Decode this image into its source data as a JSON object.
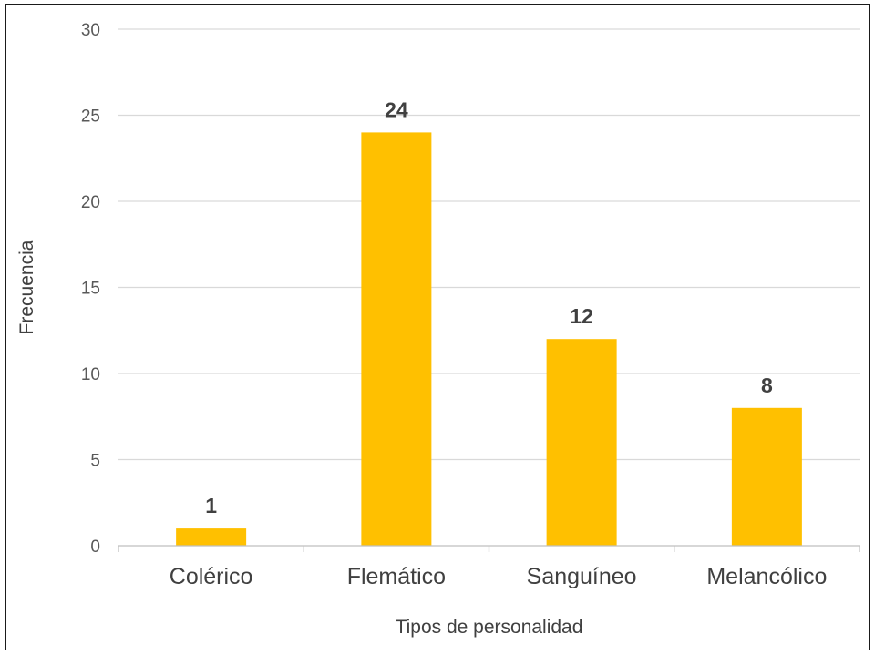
{
  "chart_data": {
    "type": "bar",
    "categories": [
      "Colérico",
      "Flemático",
      "Sanguíneo",
      "Melancólico"
    ],
    "values": [
      1,
      24,
      12,
      8
    ],
    "data_labels": [
      "1",
      "24",
      "12",
      "8"
    ],
    "title": "",
    "xlabel": "Tipos de personalidad",
    "ylabel": "Frecuencia",
    "ylim": [
      0,
      30
    ],
    "yticks": [
      "0",
      "5",
      "10",
      "15",
      "20",
      "25",
      "30"
    ],
    "grid": true,
    "legend": "none"
  },
  "colors": {
    "bar": "#FFC000",
    "grid": "#D9D9D9",
    "axis": "#BFBFBF",
    "text": "#404040",
    "tick_text": "#595959",
    "frame": "#1a1a1a"
  }
}
